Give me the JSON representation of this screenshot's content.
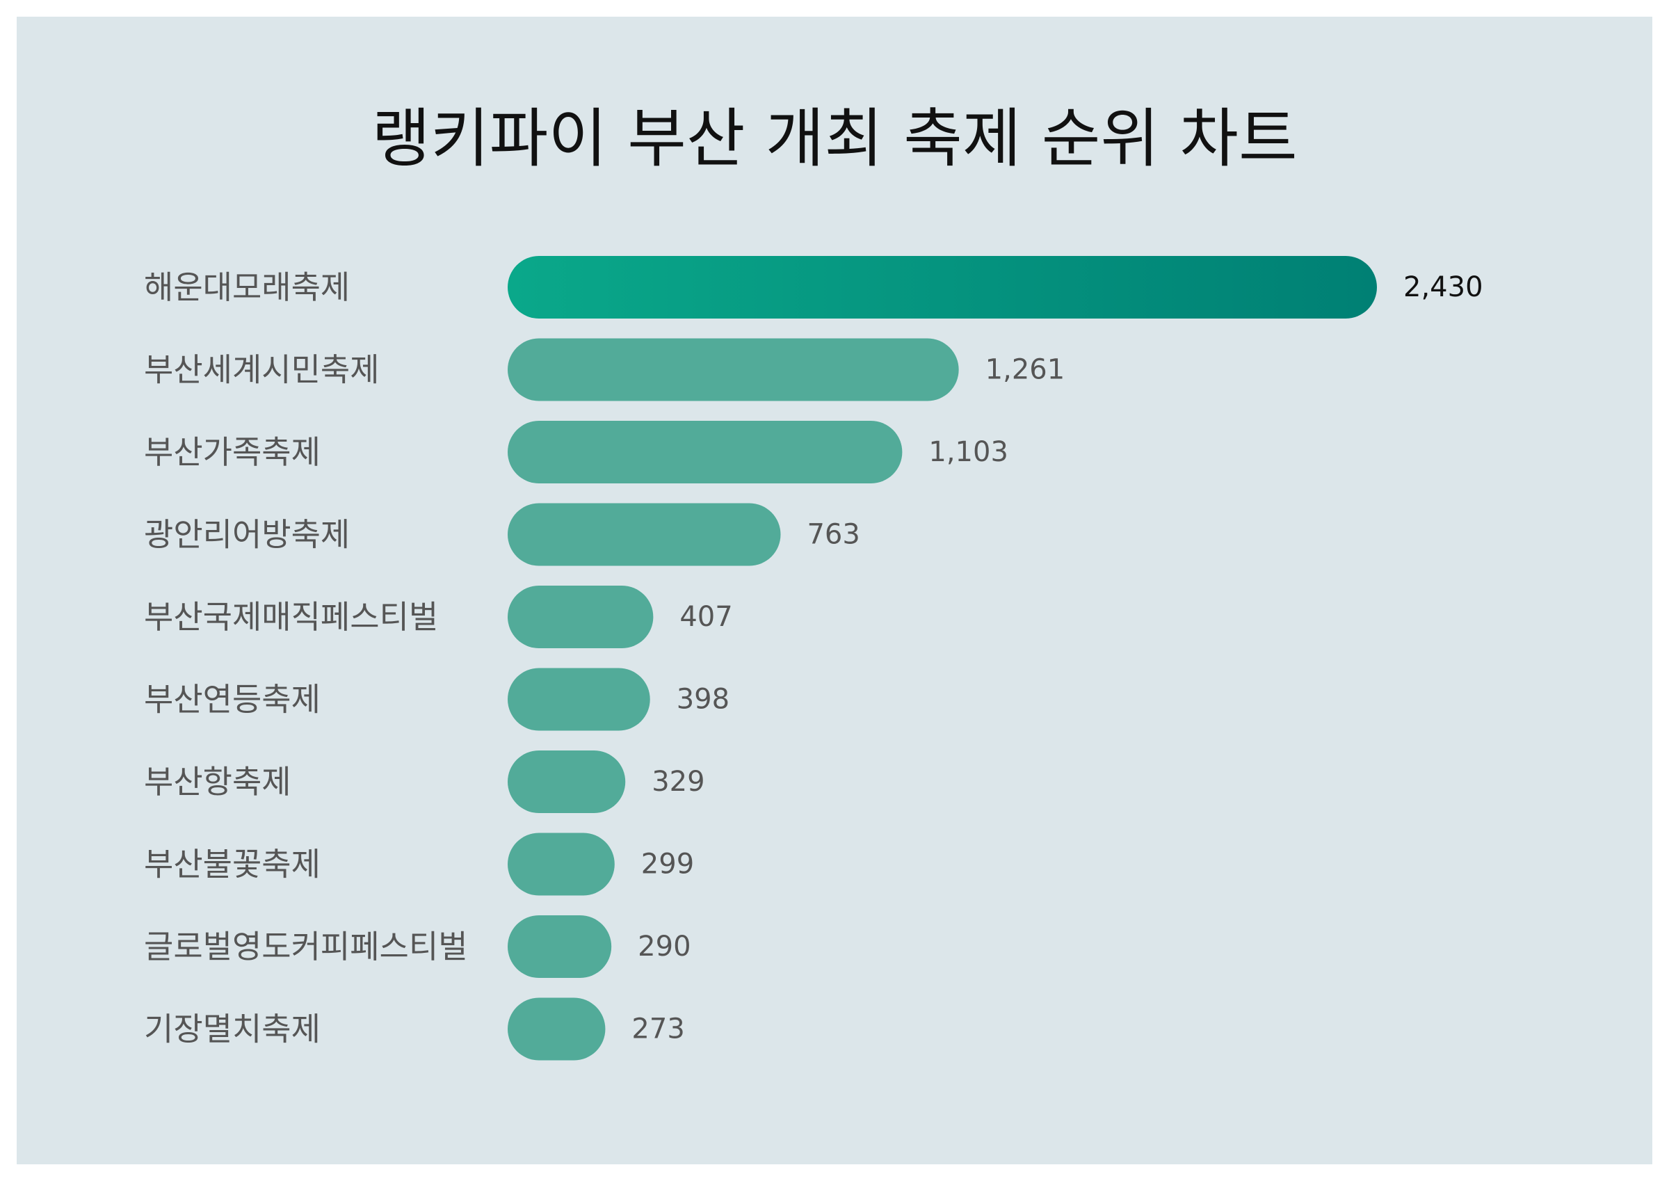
{
  "chart_data": {
    "type": "bar",
    "orientation": "horizontal",
    "title": "랭키파이 부산 개최 축제 순위 차트",
    "categories": [
      "해운대모래축제",
      "부산세계시민축제",
      "부산가족축제",
      "광안리어방축제",
      "부산국제매직페스티벌",
      "부산연등축제",
      "부산항축제",
      "부산불꽃축제",
      "글로벌영도커피페스티벌",
      "기장멸치축제"
    ],
    "values": [
      2430,
      1261,
      1103,
      763,
      407,
      398,
      329,
      299,
      290,
      273
    ],
    "value_labels": [
      "2,430",
      "1,261",
      "1,103",
      "763",
      "407",
      "398",
      "329",
      "299",
      "290",
      "273"
    ],
    "xlim": [
      0,
      2430
    ],
    "grid": false,
    "legend": "none",
    "colors": {
      "bar": "#52ab99",
      "top_bar_start": "#0aa88a",
      "top_bar_end": "#008074",
      "background": "#dce6ea",
      "label": "#555555",
      "title": "#111111"
    }
  }
}
